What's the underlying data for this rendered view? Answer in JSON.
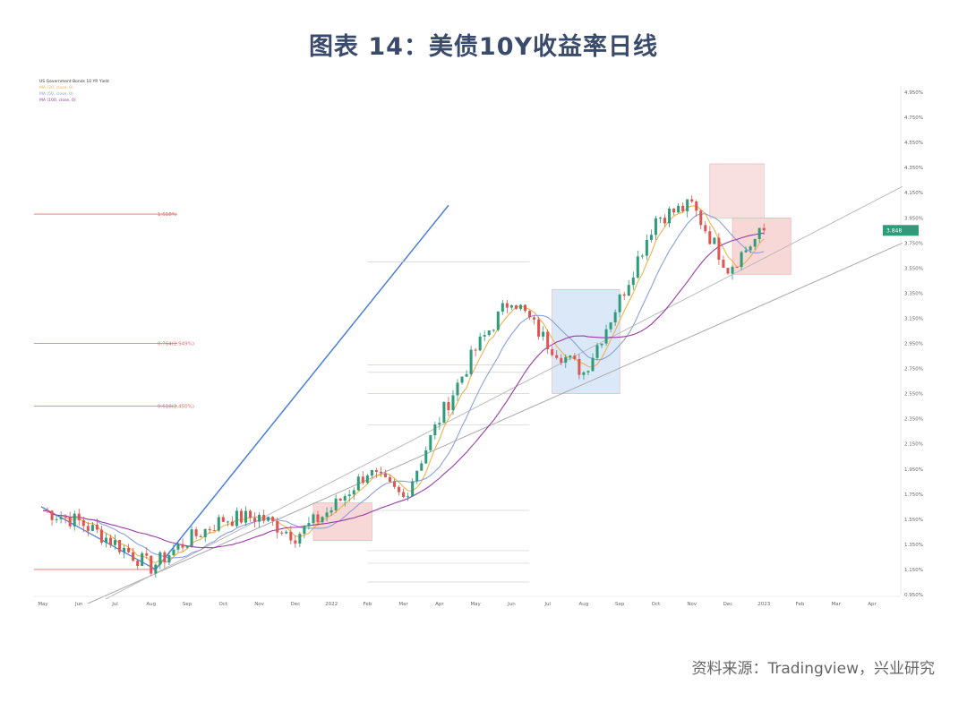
{
  "figure": {
    "title": "图表 14：美债10Y收益率日线",
    "source": "资料来源：Tradingview，兴业研究"
  },
  "chart_data": {
    "type": "candlestick",
    "title": "图表 14：美债10Y收益率日线",
    "xlabel": "",
    "ylabel": "",
    "x_ticks": [
      "May",
      "Jun",
      "Jul",
      "Aug",
      "Sep",
      "Oct",
      "Nov",
      "Dec",
      "2022",
      "Feb",
      "Mar",
      "Apr",
      "May",
      "Jun",
      "Jul",
      "Aug",
      "Sep",
      "Oct",
      "Nov",
      "Dec",
      "2023",
      "Feb",
      "Mar",
      "Apr"
    ],
    "y_ticks": [
      "4.950%",
      "4.750%",
      "4.550%",
      "4.350%",
      "4.150%",
      "3.950%",
      "3.750%",
      "3.550%",
      "3.350%",
      "3.150%",
      "2.950%",
      "2.750%",
      "2.550%",
      "2.350%",
      "2.150%",
      "1.950%",
      "1.750%",
      "1.550%",
      "1.350%",
      "1.150%",
      "0.950%"
    ],
    "ylim": [
      0.95,
      5.0
    ],
    "last_value": "3.848",
    "series": [
      {
        "name": "US Government Bonds 10 YR Yield",
        "kind": "close_path",
        "points": [
          {
            "x": "May",
            "y": 1.62
          },
          {
            "x": "Jun",
            "y": 1.53
          },
          {
            "x": "Jul",
            "y": 1.36
          },
          {
            "x": "Aug",
            "y": 1.17
          },
          {
            "x": "Sep",
            "y": 1.38
          },
          {
            "x": "Oct",
            "y": 1.55
          },
          {
            "x": "Nov",
            "y": 1.57
          },
          {
            "x": "Dec",
            "y": 1.42
          },
          {
            "x": "2022",
            "y": 1.63
          },
          {
            "x": "Feb",
            "y": 1.93
          },
          {
            "x": "Mar",
            "y": 1.72
          },
          {
            "x": "Apr",
            "y": 2.35
          },
          {
            "x": "May",
            "y": 2.9
          },
          {
            "x": "Jun",
            "y": 3.32
          },
          {
            "x": "Jul",
            "y": 2.95
          },
          {
            "x": "Aug",
            "y": 2.72
          },
          {
            "x": "Sep",
            "y": 3.3
          },
          {
            "x": "Oct",
            "y": 3.95
          },
          {
            "x": "Nov",
            "y": 4.05
          },
          {
            "x": "Dec",
            "y": 3.55
          },
          {
            "x": "2023",
            "y": 3.85
          }
        ]
      },
      {
        "name": "MA (20, close, 0)",
        "kind": "ma"
      },
      {
        "name": "MA (50, close, 0)",
        "kind": "ma"
      },
      {
        "name": "MA (100, close, 0)",
        "kind": "ma"
      }
    ],
    "fib_levels": [
      {
        "label": "1.618%",
        "y": 3.98
      },
      {
        "label": "0.764(2.949%)",
        "y": 2.95
      },
      {
        "label": "0.618(2.450%)",
        "y": 2.45
      }
    ],
    "boxes": [
      "red",
      "red",
      "blue",
      "red",
      "red"
    ],
    "grid": false,
    "legend": "top-left"
  }
}
